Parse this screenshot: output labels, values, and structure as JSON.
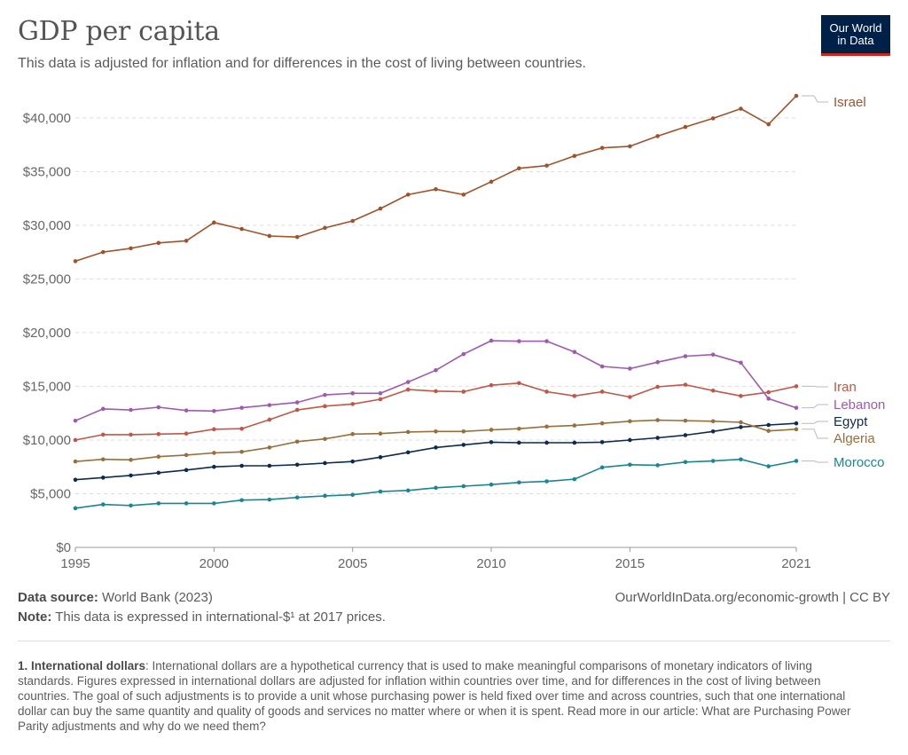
{
  "title": "GDP per capita",
  "subtitle": "This data is adjusted for inflation and for differences in the cost of living between countries.",
  "logo": {
    "line1": "Our World",
    "line2": "in Data",
    "bg": "#002147",
    "accent": "#ce261e"
  },
  "footer": {
    "source_label": "Data source:",
    "source_value": " World Bank (2023)",
    "note_label": "Note:",
    "note_value": " This data is expressed in international-$¹ at 2017 prices.",
    "right": "OurWorldInData.org/economic-growth | CC BY"
  },
  "footnote": {
    "label": "1. International dollars",
    "text": ": International dollars are a hypothetical currency that is used to make meaningful comparisons of monetary indicators of living standards. Figures expressed in international dollars are adjusted for inflation within countries over time, and for differences in the cost of living between countries. The goal of such adjustments is to provide a unit whose purchasing power is held fixed over time and across countries, such that one international dollar can buy the same quantity and quality of goods and services no matter where or when it is spent. Read more in our article: What are Purchasing Power Parity adjustments and why do we need them?"
  },
  "chart_data": {
    "type": "line",
    "xlim": [
      1995,
      2021
    ],
    "ylim": [
      0,
      42000
    ],
    "x_ticks": [
      1995,
      2000,
      2005,
      2010,
      2015,
      2021
    ],
    "y_ticks": [
      0,
      5000,
      10000,
      15000,
      20000,
      25000,
      30000,
      35000,
      40000
    ],
    "y_tick_labels": [
      "$0",
      "$5,000",
      "$10,000",
      "$15,000",
      "$20,000",
      "$25,000",
      "$30,000",
      "$35,000",
      "$40,000"
    ],
    "grid": "horizontal dashed",
    "legend": "labels at line ends, right",
    "x": [
      1995,
      1996,
      1997,
      1998,
      1999,
      2000,
      2001,
      2002,
      2003,
      2004,
      2005,
      2006,
      2007,
      2008,
      2009,
      2010,
      2011,
      2012,
      2013,
      2014,
      2015,
      2016,
      2017,
      2018,
      2019,
      2020,
      2021
    ],
    "series": [
      {
        "name": "Israel",
        "color": "#a2522b",
        "values": [
          26650,
          27500,
          27850,
          28350,
          28550,
          30250,
          29650,
          29000,
          28900,
          29750,
          30400,
          31550,
          32850,
          33350,
          32850,
          34050,
          35300,
          35550,
          36450,
          37200,
          37350,
          38300,
          39150,
          39950,
          40850,
          39400,
          42050
        ]
      },
      {
        "name": "Iran",
        "color": "#c15746",
        "values": [
          10000,
          10500,
          10500,
          10550,
          10600,
          11000,
          11050,
          11900,
          12800,
          13150,
          13350,
          13800,
          14700,
          14550,
          14500,
          15100,
          15300,
          14500,
          14100,
          14500,
          14000,
          14950,
          15150,
          14600,
          14100,
          14450,
          15000
        ]
      },
      {
        "name": "Lebanon",
        "color": "#a059b1",
        "values": [
          11800,
          12900,
          12800,
          13050,
          12750,
          12700,
          13000,
          13250,
          13500,
          14200,
          14350,
          14350,
          15400,
          16500,
          18000,
          19250,
          19200,
          19200,
          18200,
          16850,
          16650,
          17250,
          17800,
          17950,
          17200,
          13850,
          13000
        ]
      },
      {
        "name": "Egypt",
        "color": "#0e2b4f",
        "values": [
          6300,
          6500,
          6700,
          6950,
          7200,
          7500,
          7600,
          7600,
          7700,
          7850,
          8000,
          8400,
          8850,
          9300,
          9550,
          9800,
          9750,
          9750,
          9750,
          9800,
          10000,
          10200,
          10450,
          10800,
          11200,
          11400,
          11550
        ]
      },
      {
        "name": "Algeria",
        "color": "#9a6e3a",
        "values": [
          8000,
          8200,
          8150,
          8450,
          8600,
          8800,
          8900,
          9300,
          9850,
          10100,
          10550,
          10600,
          10750,
          10800,
          10800,
          10950,
          11050,
          11250,
          11350,
          11550,
          11750,
          11850,
          11800,
          11750,
          11650,
          10850,
          11000
        ]
      },
      {
        "name": "Morocco",
        "color": "#1a8596",
        "values": [
          3650,
          4000,
          3900,
          4100,
          4100,
          4100,
          4400,
          4450,
          4650,
          4800,
          4900,
          5200,
          5300,
          5550,
          5700,
          5850,
          6050,
          6150,
          6350,
          7450,
          7700,
          7650,
          7950,
          8050,
          8200,
          7550,
          8050
        ]
      }
    ]
  }
}
